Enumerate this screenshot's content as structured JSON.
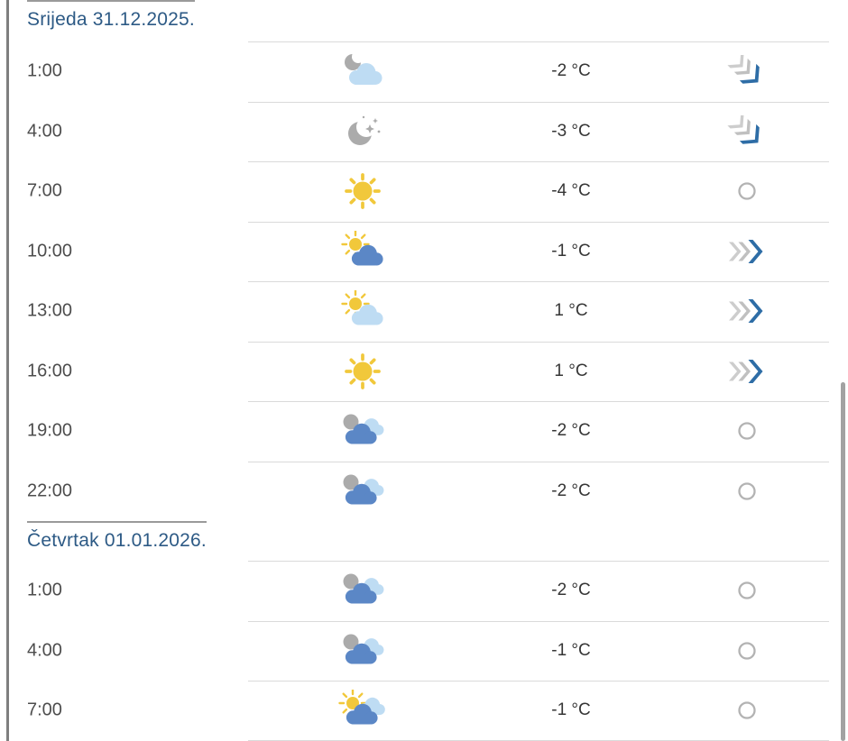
{
  "colors": {
    "heading_blue": "#2d5a85",
    "sun": "#f1c83b",
    "moon": "#ababab",
    "cloud_light": "#bedcf3",
    "cloud_dark": "#5b87c6",
    "wind_blue": "#2e6da6",
    "wind_gray_1": "#cdcdcd",
    "wind_gray_2": "#c0c0c0",
    "calm_gray": "#b3b3b3",
    "divider": "#dadada"
  },
  "days": [
    {
      "title": "Srijeda 31.12.2025.",
      "rows": [
        {
          "time": "1:00",
          "icon": "moon-behind-cloud",
          "temp": "-2 °C",
          "wind": "wind-southeast"
        },
        {
          "time": "4:00",
          "icon": "clear-night",
          "temp": "-3 °C",
          "wind": "wind-southeast"
        },
        {
          "time": "7:00",
          "icon": "sunny",
          "temp": "-4 °C",
          "wind": "calm"
        },
        {
          "time": "10:00",
          "icon": "partly-cloudy",
          "temp": "-1 °C",
          "wind": "wind-east"
        },
        {
          "time": "13:00",
          "icon": "partly-cloudy-light",
          "temp": "1 °C",
          "wind": "wind-east"
        },
        {
          "time": "16:00",
          "icon": "sunny",
          "temp": "1 °C",
          "wind": "wind-east"
        },
        {
          "time": "19:00",
          "icon": "cloudy-night",
          "temp": "-2 °C",
          "wind": "calm"
        },
        {
          "time": "22:00",
          "icon": "cloudy-night",
          "temp": "-2 °C",
          "wind": "calm"
        }
      ]
    },
    {
      "title": "Četvrtak 01.01.2026.",
      "rows": [
        {
          "time": "1:00",
          "icon": "cloudy-night",
          "temp": "-2 °C",
          "wind": "calm"
        },
        {
          "time": "4:00",
          "icon": "cloudy-night",
          "temp": "-1 °C",
          "wind": "calm"
        },
        {
          "time": "7:00",
          "icon": "sun-behind-clouds",
          "temp": "-1 °C",
          "wind": "calm"
        }
      ]
    }
  ]
}
